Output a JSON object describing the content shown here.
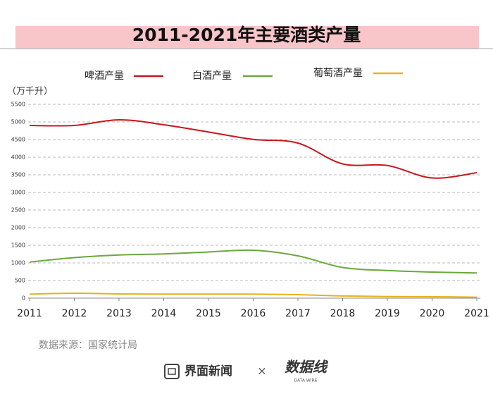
{
  "chart_data": {
    "type": "line",
    "title": "2011-2021年主要酒类产量",
    "y_label": "（万千升）",
    "categories": [
      "2011",
      "2012",
      "2013",
      "2014",
      "2015",
      "2016",
      "2017",
      "2018",
      "2019",
      "2020",
      "2021"
    ],
    "series": [
      {
        "name": "啤酒产量",
        "color": "#c8171e",
        "values": [
          4900,
          4900,
          5060,
          4920,
          4715,
          4505,
          4400,
          3810,
          3765,
          3410,
          3560
        ]
      },
      {
        "name": "白酒产量",
        "color": "#6aa83b",
        "values": [
          1025,
          1150,
          1225,
          1255,
          1310,
          1360,
          1200,
          870,
          785,
          740,
          715
        ]
      },
      {
        "name": "葡萄酒产量",
        "color": "#e8b21b",
        "values": [
          115,
          140,
          120,
          115,
          115,
          115,
          100,
          63,
          45,
          41,
          27
        ]
      }
    ],
    "ylim": [
      0,
      5500
    ],
    "yticks": [
      0,
      500,
      1000,
      1500,
      2000,
      2500,
      3000,
      3500,
      4000,
      4500,
      5000,
      5500
    ],
    "grid": true,
    "smooth": true,
    "source": "数据来源：国家统计局",
    "footer": [
      "界面新闻",
      "×",
      "数据线",
      "DATA WIRE"
    ]
  }
}
